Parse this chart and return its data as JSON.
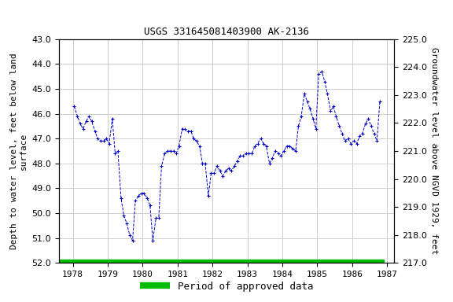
{
  "title": "USGS 331645081403900 AK-2136",
  "ylabel_left": "Depth to water level, feet below land\nsurface",
  "ylabel_right": "Groundwater level above NGVD 1929, feet",
  "ylim_left": [
    52.0,
    43.0
  ],
  "ylim_right": [
    217.0,
    225.0
  ],
  "yticks_left": [
    43.0,
    44.0,
    45.0,
    46.0,
    47.0,
    48.0,
    49.0,
    50.0,
    51.0,
    52.0
  ],
  "yticks_right": [
    217.0,
    218.0,
    219.0,
    220.0,
    221.0,
    222.0,
    223.0,
    224.0,
    225.0
  ],
  "xlim": [
    1977.6,
    1987.2
  ],
  "xticks": [
    1978,
    1979,
    1980,
    1981,
    1982,
    1983,
    1984,
    1985,
    1986,
    1987
  ],
  "line_color": "#0000cc",
  "marker": "+",
  "linestyle": "--",
  "approved_color": "#00bb00",
  "approved_label": "Period of approved data",
  "background_color": "#ffffff",
  "grid_color": "#c8c8c8",
  "title_fontsize": 9,
  "label_fontsize": 8,
  "tick_fontsize": 8,
  "legend_fontsize": 9,
  "approved_bar_y": 52.0,
  "approved_bar_xstart": 1977.6,
  "approved_bar_xend": 1986.92,
  "data_x": [
    1978.04,
    1978.13,
    1978.21,
    1978.29,
    1978.38,
    1978.46,
    1978.54,
    1978.63,
    1978.71,
    1978.79,
    1978.88,
    1978.96,
    1979.04,
    1979.13,
    1979.21,
    1979.29,
    1979.38,
    1979.46,
    1979.54,
    1979.63,
    1979.71,
    1979.79,
    1979.88,
    1979.96,
    1980.04,
    1980.13,
    1980.21,
    1980.29,
    1980.38,
    1980.46,
    1980.54,
    1980.63,
    1980.71,
    1980.79,
    1980.88,
    1980.96,
    1981.04,
    1981.13,
    1981.21,
    1981.29,
    1981.38,
    1981.46,
    1981.54,
    1981.63,
    1981.71,
    1981.79,
    1981.88,
    1981.96,
    1982.04,
    1982.13,
    1982.21,
    1982.29,
    1982.38,
    1982.46,
    1982.54,
    1982.63,
    1982.71,
    1982.79,
    1982.88,
    1982.96,
    1983.04,
    1983.13,
    1983.21,
    1983.29,
    1983.38,
    1983.46,
    1983.54,
    1983.63,
    1983.71,
    1983.79,
    1983.88,
    1983.96,
    1984.04,
    1984.13,
    1984.21,
    1984.29,
    1984.38,
    1984.46,
    1984.54,
    1984.63,
    1984.71,
    1984.79,
    1984.88,
    1984.96,
    1985.04,
    1985.13,
    1985.21,
    1985.29,
    1985.38,
    1985.46,
    1985.54,
    1985.63,
    1985.71,
    1985.79,
    1985.88,
    1985.96,
    1986.04,
    1986.13,
    1986.21,
    1986.29,
    1986.38,
    1986.46,
    1986.54,
    1986.63,
    1986.71,
    1986.79
  ],
  "data_y": [
    45.7,
    46.1,
    46.4,
    46.6,
    46.3,
    46.1,
    46.3,
    46.7,
    47.0,
    47.1,
    47.1,
    47.0,
    47.2,
    46.2,
    47.6,
    47.5,
    49.4,
    50.1,
    50.4,
    50.9,
    51.1,
    49.5,
    49.3,
    49.2,
    49.2,
    49.4,
    49.7,
    51.1,
    50.2,
    50.2,
    48.1,
    47.6,
    47.5,
    47.5,
    47.5,
    47.6,
    47.3,
    46.6,
    46.6,
    46.7,
    46.7,
    47.0,
    47.1,
    47.3,
    48.0,
    48.0,
    49.3,
    48.4,
    48.4,
    48.1,
    48.3,
    48.5,
    48.3,
    48.2,
    48.3,
    48.1,
    47.9,
    47.7,
    47.7,
    47.6,
    47.6,
    47.6,
    47.3,
    47.2,
    47.0,
    47.2,
    47.3,
    48.0,
    47.8,
    47.5,
    47.6,
    47.7,
    47.5,
    47.3,
    47.3,
    47.4,
    47.5,
    46.5,
    46.1,
    45.2,
    45.5,
    45.8,
    46.2,
    46.6,
    44.4,
    44.3,
    44.7,
    45.2,
    45.9,
    45.7,
    46.1,
    46.5,
    46.8,
    47.1,
    47.0,
    47.2,
    47.1,
    47.2,
    46.9,
    46.8,
    46.4,
    46.2,
    46.5,
    46.8,
    47.1,
    45.5
  ]
}
